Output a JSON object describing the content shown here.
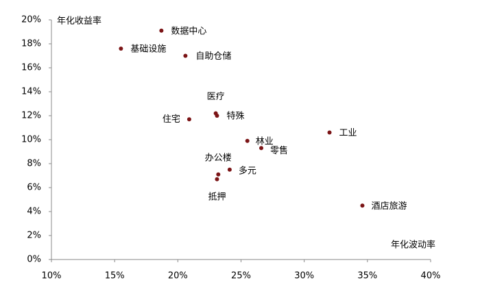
{
  "chart_data": {
    "type": "scatter",
    "y_label": "年化收益率",
    "x_label": "年化波动率",
    "point_labels": [
      "数据中心",
      "基础设施",
      "自助仓储",
      "医疗",
      "特殊",
      "住宅",
      "工业",
      "林业",
      "零售",
      "多元",
      "办公楼",
      "抵押",
      "酒店旅游"
    ],
    "x": [
      18.7,
      15.5,
      20.6,
      23.0,
      23.1,
      20.9,
      32.0,
      25.5,
      26.6,
      24.1,
      23.2,
      23.1,
      34.6
    ],
    "values": [
      19.1,
      17.6,
      17.0,
      12.2,
      12.0,
      11.7,
      10.6,
      9.9,
      9.3,
      7.5,
      7.1,
      6.7,
      4.5
    ],
    "color": "#7b1416",
    "xlim": [
      10,
      40
    ],
    "xticks": [
      {
        "value": 10,
        "label": "10%"
      },
      {
        "value": 15,
        "label": "15%"
      },
      {
        "value": 20,
        "label": "20%"
      },
      {
        "value": 25,
        "label": "25%"
      },
      {
        "value": 30,
        "label": "30%"
      },
      {
        "value": 35,
        "label": "35%"
      },
      {
        "value": 40,
        "label": "40%"
      }
    ],
    "ylim": [
      0,
      20
    ],
    "yticks": [
      {
        "value": 0,
        "label": "0%"
      },
      {
        "value": 2,
        "label": "2%"
      },
      {
        "value": 4,
        "label": "4%"
      },
      {
        "value": 6,
        "label": "6%"
      },
      {
        "value": 8,
        "label": "8%"
      },
      {
        "value": 10,
        "label": "10%"
      },
      {
        "value": 12,
        "label": "12%"
      },
      {
        "value": 14,
        "label": "14%"
      },
      {
        "value": 16,
        "label": "16%"
      },
      {
        "value": 18,
        "label": "18%"
      },
      {
        "value": 20,
        "label": "20%"
      }
    ],
    "grid": false
  }
}
